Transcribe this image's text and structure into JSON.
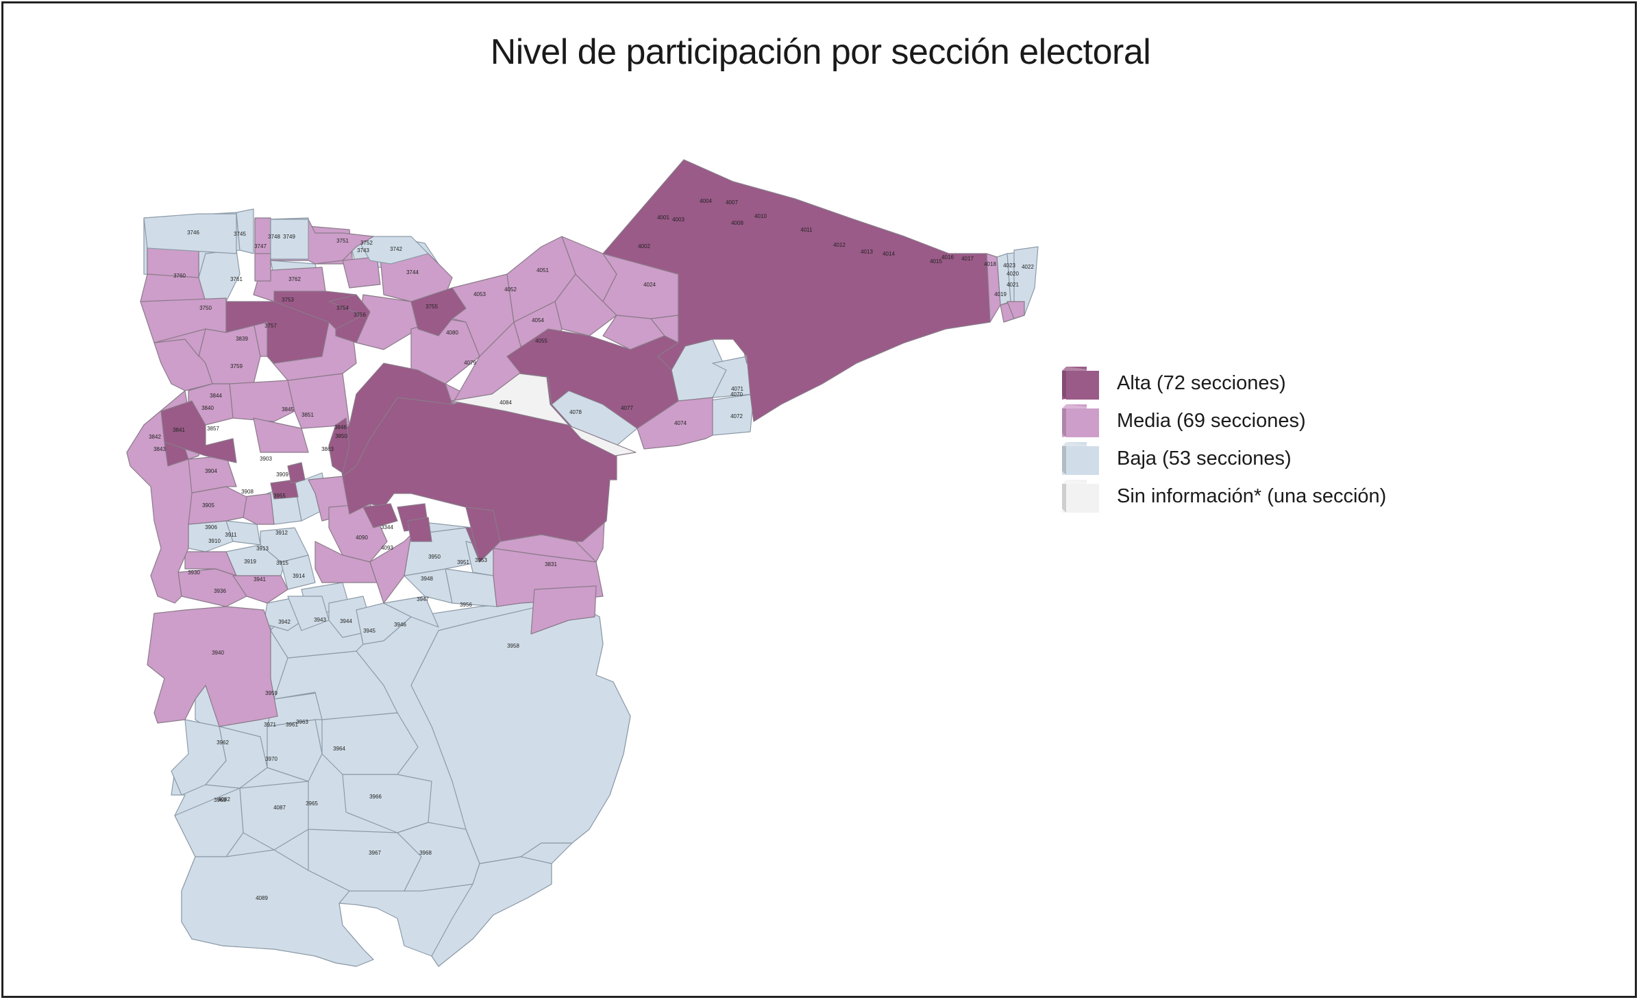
{
  "title": "Nivel de participación por sección electoral",
  "colors": {
    "alta": "#9a5b88",
    "media": "#cd9ec9",
    "baja": "#d0dde8",
    "sin": "#f2f2f2"
  },
  "legend": [
    {
      "key": "alta",
      "label": "Alta (72 secciones)"
    },
    {
      "key": "media",
      "label": "Media (69 secciones)"
    },
    {
      "key": "baja",
      "label": "Baja (53 secciones)"
    },
    {
      "key": "sin",
      "label": "Sin información* (una sección)"
    }
  ],
  "section_labels": [
    {
      "text": "3746",
      "level": "baja"
    },
    {
      "text": "3745",
      "level": "baja"
    },
    {
      "text": "3747",
      "level": "media"
    },
    {
      "text": "3748",
      "level": "baja"
    },
    {
      "text": "3749",
      "level": "baja"
    },
    {
      "text": "3751",
      "level": "media"
    },
    {
      "text": "3752",
      "level": "media"
    },
    {
      "text": "3760",
      "level": "media"
    },
    {
      "text": "3761",
      "level": "baja"
    },
    {
      "text": "3762",
      "level": "media"
    },
    {
      "text": "3750",
      "level": "media"
    },
    {
      "text": "3753",
      "level": "alta"
    },
    {
      "text": "3754",
      "level": "alta"
    },
    {
      "text": "3755",
      "level": "alta"
    },
    {
      "text": "3757",
      "level": "alta"
    },
    {
      "text": "3756",
      "level": "media"
    },
    {
      "text": "3759",
      "level": "media"
    },
    {
      "text": "3742",
      "level": "baja"
    },
    {
      "text": "3743",
      "level": "baja"
    },
    {
      "text": "3744",
      "level": "media"
    },
    {
      "text": "4051",
      "level": "media"
    },
    {
      "text": "4052",
      "level": "media"
    },
    {
      "text": "4053",
      "level": "media"
    },
    {
      "text": "4054",
      "level": "media"
    },
    {
      "text": "4055",
      "level": "media"
    },
    {
      "text": "4079",
      "level": "media"
    },
    {
      "text": "4080",
      "level": "media"
    },
    {
      "text": "4084",
      "level": "sin"
    },
    {
      "text": "4078",
      "level": "baja"
    },
    {
      "text": "4001",
      "level": "alta"
    },
    {
      "text": "4002",
      "level": "alta"
    },
    {
      "text": "4003",
      "level": "alta"
    },
    {
      "text": "4004",
      "level": "alta"
    },
    {
      "text": "4007",
      "level": "alta"
    },
    {
      "text": "4008",
      "level": "alta"
    },
    {
      "text": "4010",
      "level": "alta"
    },
    {
      "text": "4011",
      "level": "alta"
    },
    {
      "text": "4012",
      "level": "alta"
    },
    {
      "text": "4013",
      "level": "alta"
    },
    {
      "text": "4014",
      "level": "alta"
    },
    {
      "text": "4015",
      "level": "alta"
    },
    {
      "text": "4016",
      "level": "alta"
    },
    {
      "text": "4017",
      "level": "alta"
    },
    {
      "text": "4018",
      "level": "media"
    },
    {
      "text": "4019",
      "level": "media"
    },
    {
      "text": "4020",
      "level": "media"
    },
    {
      "text": "4021",
      "level": "baja"
    },
    {
      "text": "4022",
      "level": "baja"
    },
    {
      "text": "4023",
      "level": "media"
    },
    {
      "text": "4024",
      "level": "media"
    },
    {
      "text": "4070",
      "level": "baja"
    },
    {
      "text": "4071",
      "level": "baja"
    },
    {
      "text": "4072",
      "level": "baja"
    },
    {
      "text": "4074",
      "level": "media"
    },
    {
      "text": "4077",
      "level": "alta"
    },
    {
      "text": "3831",
      "level": "media"
    },
    {
      "text": "3839",
      "level": "media"
    },
    {
      "text": "3840",
      "level": "alta"
    },
    {
      "text": "3841",
      "level": "alta"
    },
    {
      "text": "3842",
      "level": "media"
    },
    {
      "text": "3843",
      "level": "media"
    },
    {
      "text": "3844",
      "level": "media"
    },
    {
      "text": "3845",
      "level": "alta"
    },
    {
      "text": "3846",
      "level": "media"
    },
    {
      "text": "3850",
      "level": "alta"
    },
    {
      "text": "3851",
      "level": "media"
    },
    {
      "text": "3857",
      "level": "media"
    },
    {
      "text": "3863",
      "level": "media"
    },
    {
      "text": "3903",
      "level": "media"
    },
    {
      "text": "3904",
      "level": "media"
    },
    {
      "text": "3905",
      "level": "baja"
    },
    {
      "text": "3906",
      "level": "baja"
    },
    {
      "text": "3908",
      "level": "media"
    },
    {
      "text": "3909",
      "level": "media"
    },
    {
      "text": "3910",
      "level": "baja"
    },
    {
      "text": "3911",
      "level": "baja"
    },
    {
      "text": "3912",
      "level": "baja"
    },
    {
      "text": "3913",
      "level": "baja"
    },
    {
      "text": "3914",
      "level": "baja"
    },
    {
      "text": "3915",
      "level": "media"
    },
    {
      "text": "3919",
      "level": "media"
    },
    {
      "text": "3930",
      "level": "media"
    },
    {
      "text": "3936",
      "level": "media"
    },
    {
      "text": "3940",
      "level": "baja"
    },
    {
      "text": "3941",
      "level": "baja"
    },
    {
      "text": "3942",
      "level": "baja"
    },
    {
      "text": "3943",
      "level": "baja"
    },
    {
      "text": "3944",
      "level": "baja"
    },
    {
      "text": "3945",
      "level": "baja"
    },
    {
      "text": "3946",
      "level": "baja"
    },
    {
      "text": "3947",
      "level": "baja"
    },
    {
      "text": "3948",
      "level": "baja"
    },
    {
      "text": "3950",
      "level": "alta"
    },
    {
      "text": "3951",
      "level": "baja"
    },
    {
      "text": "3953",
      "level": "baja"
    },
    {
      "text": "3955",
      "level": "baja"
    },
    {
      "text": "3956",
      "level": "baja"
    },
    {
      "text": "3958",
      "level": "baja"
    },
    {
      "text": "3959",
      "level": "baja"
    },
    {
      "text": "3961",
      "level": "baja"
    },
    {
      "text": "3962",
      "level": "baja"
    },
    {
      "text": "3963",
      "level": "baja"
    },
    {
      "text": "3964",
      "level": "baja"
    },
    {
      "text": "3965",
      "level": "baja"
    },
    {
      "text": "3966",
      "level": "baja"
    },
    {
      "text": "3967",
      "level": "baja"
    },
    {
      "text": "3968",
      "level": "baja"
    },
    {
      "text": "3969",
      "level": "baja"
    },
    {
      "text": "3970",
      "level": "baja"
    },
    {
      "text": "3971",
      "level": "baja"
    },
    {
      "text": "4082",
      "level": "baja"
    },
    {
      "text": "4087",
      "level": "media"
    },
    {
      "text": "4089",
      "level": "alta"
    },
    {
      "text": "4090",
      "level": "alta"
    },
    {
      "text": "4093",
      "level": "alta"
    },
    {
      "text": "3344",
      "level": "baja"
    }
  ]
}
